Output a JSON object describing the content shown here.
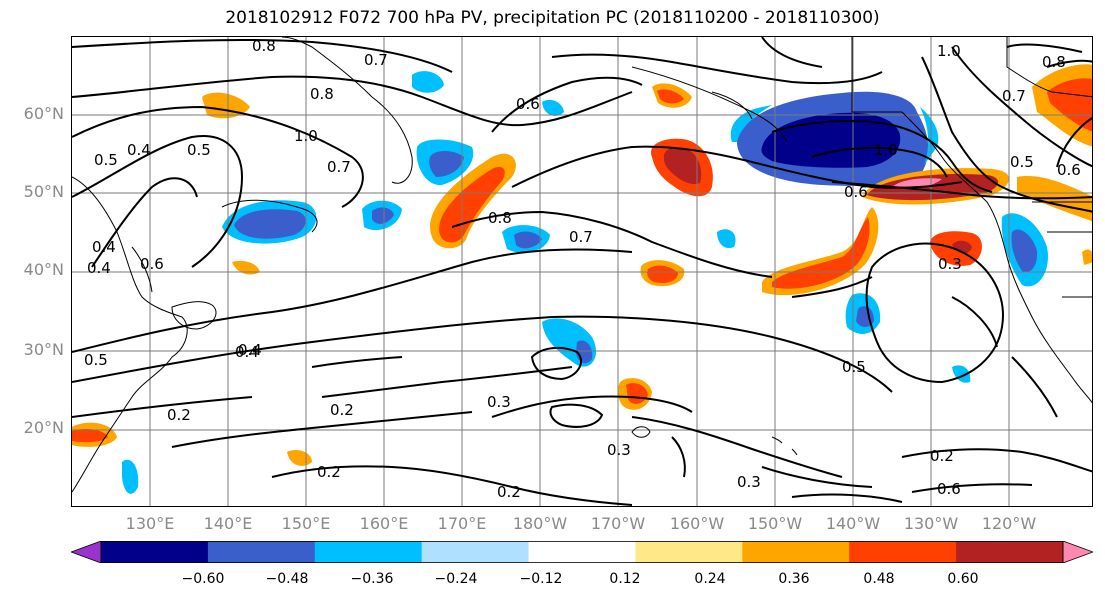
{
  "title": "2018102912 F072 700 hPa PV, precipitation PC (2018110200 - 2018110300)",
  "axes": {
    "lat_labels": [
      "60°N",
      "50°N",
      "40°N",
      "30°N",
      "20°N"
    ],
    "lon_labels": [
      "130°E",
      "140°E",
      "150°E",
      "160°E",
      "170°E",
      "180°W",
      "170°W",
      "160°W",
      "150°W",
      "140°W",
      "130°W",
      "120°W"
    ]
  },
  "colorbar": {
    "ticks": [
      "−0.60",
      "−0.48",
      "−0.36",
      "−0.24",
      "−0.12",
      "0.12",
      "0.24",
      "0.36",
      "0.48",
      "0.60"
    ],
    "colors": [
      "#9933cc",
      "#00008b",
      "#3a5fcd",
      "#00bfff",
      "#b0e0ff",
      "#ffffff",
      "#ffe987",
      "#ffa500",
      "#ff4000",
      "#b22222",
      "#ff88b0"
    ]
  },
  "contour_labels": [
    "0.8",
    "0.7",
    "0.8",
    "0.4",
    "0.5",
    "0.5",
    "0.4",
    "1.0",
    "0.7",
    "0.6",
    "0.4",
    "0.4",
    "0.6",
    "0.5",
    "0.8",
    "0.7",
    "1.0",
    "0.6",
    "1.0",
    "0.8",
    "0.7",
    "0.5",
    "0.6",
    "0.3",
    "0.5",
    "0.4",
    "0.2",
    "0.2",
    "0.3",
    "0.3",
    "0.2",
    "0.2",
    "0.2",
    "0.3",
    "0.6"
  ]
}
